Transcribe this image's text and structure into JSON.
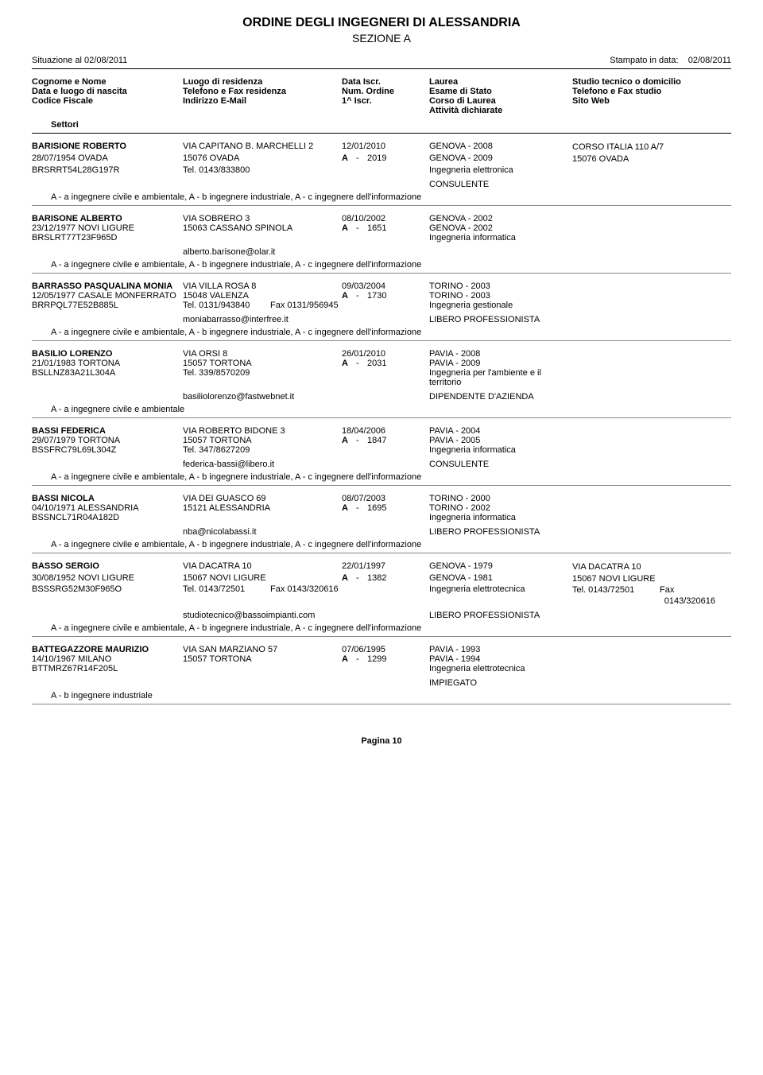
{
  "header": {
    "title1": "ORDINE DEGLI INGEGNERI DI ALESSANDRIA",
    "title2": "SEZIONE A",
    "left": "Situazione al 02/08/2011",
    "right_label": "Stampato in data:",
    "right_date": "02/08/2011"
  },
  "legend": {
    "c1": [
      "Cognome e Nome",
      "Data e luogo di nascita",
      "Codice Fiscale"
    ],
    "c2": [
      "Luogo di residenza",
      "Telefono e Fax residenza",
      "Indirizzo E-Mail"
    ],
    "c3": [
      "Data Iscr.",
      "Num. Ordine",
      "1^ Iscr."
    ],
    "c4": [
      "Laurea",
      "Esame di Stato",
      "Corso di Laurea",
      "Attività dichiarate"
    ],
    "c5": [
      "Studio tecnico o domicilio",
      "Telefono e Fax studio",
      "Sito Web"
    ],
    "settori": "Settori"
  },
  "entries": [
    {
      "name": "BARISIONE ROBERTO",
      "birth": "28/07/1954 OVADA",
      "cf": "BRSRRT54L28G197R",
      "addr": "VIA CAPITANO B. MARCHELLI 2",
      "city": "15076  OVADA",
      "tel": "Tel. 0143/833800",
      "fax": "",
      "email": "",
      "date": "12/01/2010",
      "ord": "2019",
      "laurea": "GENOVA - 2008",
      "esame": "GENOVA - 2009",
      "corso": "Ingegneria elettronica",
      "activity": "CONSULENTE",
      "studio": [
        "CORSO ITALIA 110 A/7",
        "15076  OVADA"
      ],
      "sectors": "A - a ingegnere civile e ambientale, A - b ingegnere industriale, A - c ingegnere dell'informazione"
    },
    {
      "name": "BARISONE  ALBERTO",
      "birth": "23/12/1977 NOVI LIGURE",
      "cf": "BRSLRT77T23F965D",
      "addr": "VIA SOBRERO 3",
      "city": "15063  CASSANO SPINOLA",
      "tel": "",
      "fax": "",
      "email": "alberto.barisone@olar.it",
      "date": "08/10/2002",
      "ord": "1651",
      "laurea": "GENOVA - 2002",
      "esame": "GENOVA - 2002",
      "corso": "Ingegneria informatica",
      "activity": "",
      "studio": [],
      "sectors": "A - a ingegnere civile e ambientale, A - b ingegnere industriale, A - c ingegnere dell'informazione"
    },
    {
      "name": "BARRASSO PASQUALINA MONIA",
      "birth": "12/05/1977 CASALE MONFERRATO",
      "cf": "BRRPQL77E52B885L",
      "addr": "VIA VILLA ROSA 8",
      "city": "15048  VALENZA",
      "tel": "Tel. 0131/943840",
      "fax": "Fax 0131/956945",
      "email": "moniabarrasso@interfree.it",
      "date": "09/03/2004",
      "ord": "1730",
      "laurea": "TORINO - 2003",
      "esame": "TORINO - 2003",
      "corso": "Ingegneria gestionale",
      "activity": "LIBERO PROFESSIONISTA",
      "studio": [],
      "sectors": "A - a ingegnere civile e ambientale, A - b ingegnere industriale, A - c ingegnere dell'informazione"
    },
    {
      "name": "BASILIO LORENZO",
      "birth": "21/01/1983 TORTONA",
      "cf": "BSLLNZ83A21L304A",
      "addr": "VIA ORSI 8",
      "city": "15057  TORTONA",
      "tel": "Tel. 339/8570209",
      "fax": "",
      "email": "basiliolorenzo@fastwebnet.it",
      "date": "26/01/2010",
      "ord": "2031",
      "laurea": "PAVIA - 2008",
      "esame": "PAVIA - 2009",
      "corso": "Ingegneria per l'ambiente e il territorio",
      "activity": "DIPENDENTE D'AZIENDA",
      "studio": [],
      "sectors": "A - a ingegnere civile e ambientale"
    },
    {
      "name": "BASSI FEDERICA",
      "birth": "29/07/1979 TORTONA",
      "cf": "BSSFRC79L69L304Z",
      "addr": "VIA ROBERTO BIDONE 3",
      "city": "15057  TORTONA",
      "tel": "Tel. 347/8627209",
      "fax": "",
      "email": "federica-bassi@libero.it",
      "date": "18/04/2006",
      "ord": "1847",
      "laurea": "PAVIA - 2004",
      "esame": "PAVIA - 2005",
      "corso": "Ingegneria informatica",
      "activity": "CONSULENTE",
      "studio": [],
      "sectors": "A - a ingegnere civile e ambientale, A - b ingegnere industriale, A - c ingegnere dell'informazione"
    },
    {
      "name": "BASSI  NICOLA",
      "birth": "04/10/1971 ALESSANDRIA",
      "cf": "BSSNCL71R04A182D",
      "addr": "VIA DEI GUASCO 69",
      "city": "15121  ALESSANDRIA",
      "tel": "",
      "fax": "",
      "email": "nba@nicolabassi.it",
      "date": "08/07/2003",
      "ord": "1695",
      "laurea": "TORINO - 2000",
      "esame": "TORINO - 2002",
      "corso": "Ingegneria informatica",
      "activity": "LIBERO PROFESSIONISTA",
      "studio": [],
      "sectors": "A - a ingegnere civile e ambientale, A - b ingegnere industriale, A - c ingegnere dell'informazione"
    },
    {
      "name": "BASSO SERGIO",
      "birth": "30/08/1952 NOVI LIGURE",
      "cf": "BSSSRG52M30F965O",
      "addr": "VIA DACATRA 10",
      "city": "15067  NOVI LIGURE",
      "tel": "Tel. 0143/72501",
      "fax": "Fax 0143/320616",
      "email": "studiotecnico@bassoimpianti.com",
      "date": "22/01/1997",
      "ord": "1382",
      "laurea": "GENOVA - 1979",
      "esame": "GENOVA - 1981",
      "corso": "Ingegneria elettrotecnica",
      "activity": "LIBERO PROFESSIONISTA",
      "studio": [
        "VIA DACATRA 10",
        "15067  NOVI LIGURE"
      ],
      "studio_tel": "Tel. 0143/72501",
      "studio_fax_lbl": "Fax",
      "studio_fax": "0143/320616",
      "sectors": "A - a ingegnere civile e ambientale, A - b ingegnere industriale, A - c ingegnere dell'informazione"
    },
    {
      "name": "BATTEGAZZORE MAURIZIO",
      "birth": "14/10/1967 MILANO",
      "cf": "BTTMRZ67R14F205L",
      "addr": "VIA SAN MARZIANO 57",
      "city": "15057  TORTONA",
      "tel": "",
      "fax": "",
      "email": "",
      "date": "07/06/1995",
      "ord": "1299",
      "laurea": "PAVIA - 1993",
      "esame": "PAVIA - 1994",
      "corso": "Ingegneria elettrotecnica",
      "activity": "IMPIEGATO",
      "studio": [],
      "sectors": "A - b ingegnere industriale"
    }
  ],
  "page_label": "Pagina 10"
}
